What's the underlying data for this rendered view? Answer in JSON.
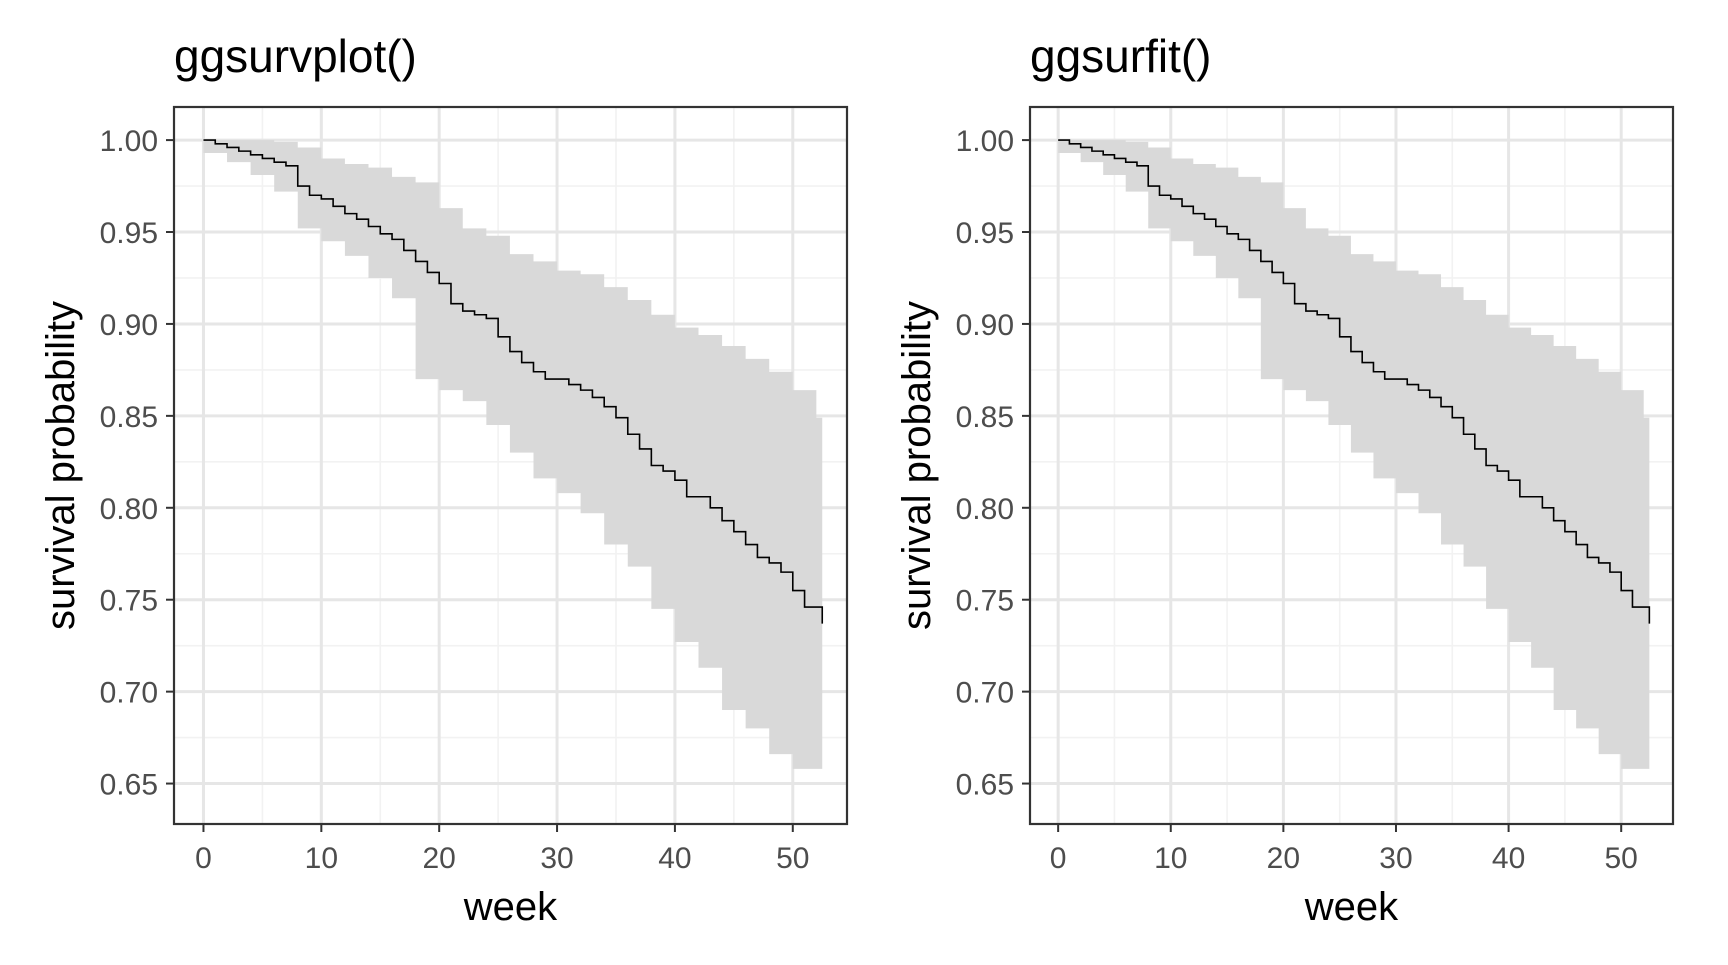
{
  "chart_data": [
    {
      "type": "line",
      "title": "ggsurvplot()",
      "xlabel": "week",
      "ylabel": "survival probability",
      "xlim": [
        -2.5,
        54.6
      ],
      "ylim": [
        0.628,
        1.018
      ],
      "x_ticks": [
        0,
        10,
        20,
        30,
        40,
        50
      ],
      "y_ticks": [
        1.0,
        0.95,
        0.9,
        0.85,
        0.8,
        0.75,
        0.7,
        0.65
      ],
      "x_tick_labels": [
        "0",
        "10",
        "20",
        "30",
        "40",
        "50"
      ],
      "y_tick_labels": [
        "1.00",
        "0.95",
        "0.90",
        "0.85",
        "0.80",
        "0.75",
        "0.70",
        "0.65"
      ],
      "grid": true,
      "step_curve": [
        [
          0,
          1.0
        ],
        [
          1,
          0.998
        ],
        [
          2,
          0.996
        ],
        [
          3,
          0.994
        ],
        [
          4,
          0.992
        ],
        [
          5,
          0.99
        ],
        [
          6,
          0.988
        ],
        [
          7,
          0.986
        ],
        [
          8,
          0.975
        ],
        [
          9,
          0.97
        ],
        [
          10,
          0.968
        ],
        [
          11,
          0.964
        ],
        [
          12,
          0.96
        ],
        [
          13,
          0.957
        ],
        [
          14,
          0.953
        ],
        [
          15,
          0.949
        ],
        [
          16,
          0.946
        ],
        [
          17,
          0.94
        ],
        [
          18,
          0.934
        ],
        [
          19,
          0.928
        ],
        [
          20,
          0.922
        ],
        [
          21,
          0.911
        ],
        [
          22,
          0.907
        ],
        [
          23,
          0.905
        ],
        [
          24,
          0.903
        ],
        [
          25,
          0.893
        ],
        [
          26,
          0.885
        ],
        [
          27,
          0.879
        ],
        [
          28,
          0.874
        ],
        [
          29,
          0.87
        ],
        [
          31,
          0.867
        ],
        [
          32,
          0.864
        ],
        [
          33,
          0.86
        ],
        [
          34,
          0.855
        ],
        [
          35,
          0.849
        ],
        [
          36,
          0.84
        ],
        [
          37,
          0.832
        ],
        [
          38,
          0.823
        ],
        [
          39,
          0.82
        ],
        [
          40,
          0.815
        ],
        [
          41,
          0.806
        ],
        [
          43,
          0.8
        ],
        [
          44,
          0.793
        ],
        [
          45,
          0.787
        ],
        [
          46,
          0.78
        ],
        [
          47,
          0.773
        ],
        [
          48,
          0.77
        ],
        [
          49,
          0.765
        ],
        [
          50,
          0.755
        ],
        [
          51,
          0.746
        ],
        [
          52,
          0.746
        ],
        [
          52.5,
          0.737
        ]
      ],
      "ci_upper": [
        [
          0,
          1.0
        ],
        [
          6,
          0.999
        ],
        [
          8,
          0.996
        ],
        [
          10,
          0.99
        ],
        [
          12,
          0.987
        ],
        [
          14,
          0.985
        ],
        [
          16,
          0.98
        ],
        [
          18,
          0.977
        ],
        [
          20,
          0.963
        ],
        [
          22,
          0.952
        ],
        [
          24,
          0.948
        ],
        [
          26,
          0.938
        ],
        [
          28,
          0.934
        ],
        [
          30,
          0.929
        ],
        [
          32,
          0.927
        ],
        [
          34,
          0.92
        ],
        [
          36,
          0.913
        ],
        [
          38,
          0.905
        ],
        [
          40,
          0.898
        ],
        [
          42,
          0.894
        ],
        [
          44,
          0.888
        ],
        [
          46,
          0.881
        ],
        [
          48,
          0.874
        ],
        [
          50,
          0.864
        ],
        [
          52,
          0.849
        ],
        [
          52.5,
          0.849
        ]
      ],
      "ci_lower": [
        [
          0,
          1.0
        ],
        [
          2,
          0.993
        ],
        [
          4,
          0.988
        ],
        [
          6,
          0.981
        ],
        [
          8,
          0.972
        ],
        [
          10,
          0.952
        ],
        [
          12,
          0.945
        ],
        [
          14,
          0.937
        ],
        [
          16,
          0.925
        ],
        [
          18,
          0.914
        ],
        [
          20,
          0.87
        ],
        [
          22,
          0.864
        ],
        [
          24,
          0.858
        ],
        [
          26,
          0.845
        ],
        [
          28,
          0.83
        ],
        [
          30,
          0.816
        ],
        [
          32,
          0.808
        ],
        [
          34,
          0.797
        ],
        [
          36,
          0.78
        ],
        [
          38,
          0.768
        ],
        [
          40,
          0.745
        ],
        [
          42,
          0.727
        ],
        [
          44,
          0.713
        ],
        [
          46,
          0.69
        ],
        [
          48,
          0.68
        ],
        [
          50,
          0.666
        ],
        [
          52,
          0.658
        ],
        [
          52.5,
          0.658
        ]
      ]
    },
    {
      "type": "line",
      "title": "ggsurfit()",
      "xlabel": "week",
      "ylabel": "survival probability",
      "xlim": [
        -2.5,
        54.6
      ],
      "ylim": [
        0.628,
        1.018
      ],
      "x_ticks": [
        0,
        10,
        20,
        30,
        40,
        50
      ],
      "y_ticks": [
        1.0,
        0.95,
        0.9,
        0.85,
        0.8,
        0.75,
        0.7,
        0.65
      ],
      "x_tick_labels": [
        "0",
        "10",
        "20",
        "30",
        "40",
        "50"
      ],
      "y_tick_labels": [
        "1.00",
        "0.95",
        "0.90",
        "0.85",
        "0.80",
        "0.75",
        "0.70",
        "0.65"
      ],
      "grid": true,
      "step_curve": [
        [
          0,
          1.0
        ],
        [
          1,
          0.998
        ],
        [
          2,
          0.996
        ],
        [
          3,
          0.994
        ],
        [
          4,
          0.992
        ],
        [
          5,
          0.99
        ],
        [
          6,
          0.988
        ],
        [
          7,
          0.986
        ],
        [
          8,
          0.975
        ],
        [
          9,
          0.97
        ],
        [
          10,
          0.968
        ],
        [
          11,
          0.964
        ],
        [
          12,
          0.96
        ],
        [
          13,
          0.957
        ],
        [
          14,
          0.953
        ],
        [
          15,
          0.949
        ],
        [
          16,
          0.946
        ],
        [
          17,
          0.94
        ],
        [
          18,
          0.934
        ],
        [
          19,
          0.928
        ],
        [
          20,
          0.922
        ],
        [
          21,
          0.911
        ],
        [
          22,
          0.907
        ],
        [
          23,
          0.905
        ],
        [
          24,
          0.903
        ],
        [
          25,
          0.893
        ],
        [
          26,
          0.885
        ],
        [
          27,
          0.879
        ],
        [
          28,
          0.874
        ],
        [
          29,
          0.87
        ],
        [
          31,
          0.867
        ],
        [
          32,
          0.864
        ],
        [
          33,
          0.86
        ],
        [
          34,
          0.855
        ],
        [
          35,
          0.849
        ],
        [
          36,
          0.84
        ],
        [
          37,
          0.832
        ],
        [
          38,
          0.823
        ],
        [
          39,
          0.82
        ],
        [
          40,
          0.815
        ],
        [
          41,
          0.806
        ],
        [
          43,
          0.8
        ],
        [
          44,
          0.793
        ],
        [
          45,
          0.787
        ],
        [
          46,
          0.78
        ],
        [
          47,
          0.773
        ],
        [
          48,
          0.77
        ],
        [
          49,
          0.765
        ],
        [
          50,
          0.755
        ],
        [
          51,
          0.746
        ],
        [
          52,
          0.746
        ],
        [
          52.5,
          0.737
        ]
      ],
      "ci_upper": [
        [
          0,
          1.0
        ],
        [
          6,
          0.999
        ],
        [
          8,
          0.996
        ],
        [
          10,
          0.99
        ],
        [
          12,
          0.987
        ],
        [
          14,
          0.985
        ],
        [
          16,
          0.98
        ],
        [
          18,
          0.977
        ],
        [
          20,
          0.963
        ],
        [
          22,
          0.952
        ],
        [
          24,
          0.948
        ],
        [
          26,
          0.938
        ],
        [
          28,
          0.934
        ],
        [
          30,
          0.929
        ],
        [
          32,
          0.927
        ],
        [
          34,
          0.92
        ],
        [
          36,
          0.913
        ],
        [
          38,
          0.905
        ],
        [
          40,
          0.898
        ],
        [
          42,
          0.894
        ],
        [
          44,
          0.888
        ],
        [
          46,
          0.881
        ],
        [
          48,
          0.874
        ],
        [
          50,
          0.864
        ],
        [
          52,
          0.849
        ],
        [
          52.5,
          0.849
        ]
      ],
      "ci_lower": [
        [
          0,
          1.0
        ],
        [
          2,
          0.993
        ],
        [
          4,
          0.988
        ],
        [
          6,
          0.981
        ],
        [
          8,
          0.972
        ],
        [
          10,
          0.952
        ],
        [
          12,
          0.945
        ],
        [
          14,
          0.937
        ],
        [
          16,
          0.925
        ],
        [
          18,
          0.914
        ],
        [
          20,
          0.87
        ],
        [
          22,
          0.864
        ],
        [
          24,
          0.858
        ],
        [
          26,
          0.845
        ],
        [
          28,
          0.83
        ],
        [
          30,
          0.816
        ],
        [
          32,
          0.808
        ],
        [
          34,
          0.797
        ],
        [
          36,
          0.78
        ],
        [
          38,
          0.768
        ],
        [
          40,
          0.745
        ],
        [
          42,
          0.727
        ],
        [
          44,
          0.713
        ],
        [
          46,
          0.69
        ],
        [
          48,
          0.68
        ],
        [
          50,
          0.666
        ],
        [
          52,
          0.658
        ],
        [
          52.5,
          0.658
        ]
      ]
    }
  ],
  "colors": {
    "curve": "#000000",
    "ci_band": "#d9d9d9",
    "grid_major": "#e6e6e6",
    "grid_minor": "#f2f2f2",
    "panel_border": "#333333",
    "tick_label": "#4d4d4d",
    "text": "#000000"
  }
}
